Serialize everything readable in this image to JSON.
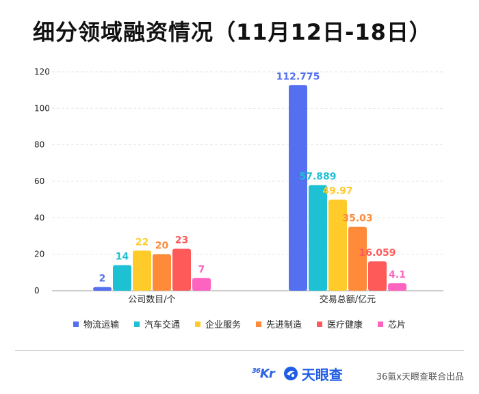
{
  "title": "细分领域融资情况（11月12日-18日）",
  "chart_data": {
    "type": "bar",
    "categories": [
      "公司数目/个",
      "交易总额/亿元"
    ],
    "series": [
      {
        "name": "物流运输",
        "color": "#5470f0",
        "values": [
          2,
          112.775
        ],
        "labels": [
          "2",
          "112.775"
        ]
      },
      {
        "name": "汽车交通",
        "color": "#1ec0d3",
        "values": [
          14,
          57.889
        ],
        "labels": [
          "14",
          "57.889"
        ]
      },
      {
        "name": "企业服务",
        "color": "#ffcb2b",
        "values": [
          22,
          49.97
        ],
        "labels": [
          "22",
          "49.97"
        ]
      },
      {
        "name": "先进制造",
        "color": "#ff8a3a",
        "values": [
          20,
          35.03
        ],
        "labels": [
          "20",
          "35.03"
        ]
      },
      {
        "name": "医疗健康",
        "color": "#ff5a5a",
        "values": [
          23,
          16.059
        ],
        "labels": [
          "23",
          "16.059"
        ]
      },
      {
        "name": "芯片",
        "color": "#ff63c0",
        "values": [
          7,
          4.1
        ],
        "labels": [
          "7",
          "4.1"
        ]
      }
    ],
    "yticks": [
      "0",
      "20",
      "40",
      "60",
      "80",
      "100",
      "120"
    ],
    "ylim": [
      0,
      120
    ],
    "grid": true,
    "legend": "bottom"
  },
  "footer": {
    "logo_36kr_main": "Kr",
    "logo_36kr_sup": "36",
    "logo_tyc": "天眼查",
    "credit": "36氪x天眼查联合出品"
  },
  "colors": {
    "axis": "#9a9a9a",
    "grid": "#e6e6e6",
    "tick_text": "#222222",
    "brand_blue": "#1f5de6"
  }
}
